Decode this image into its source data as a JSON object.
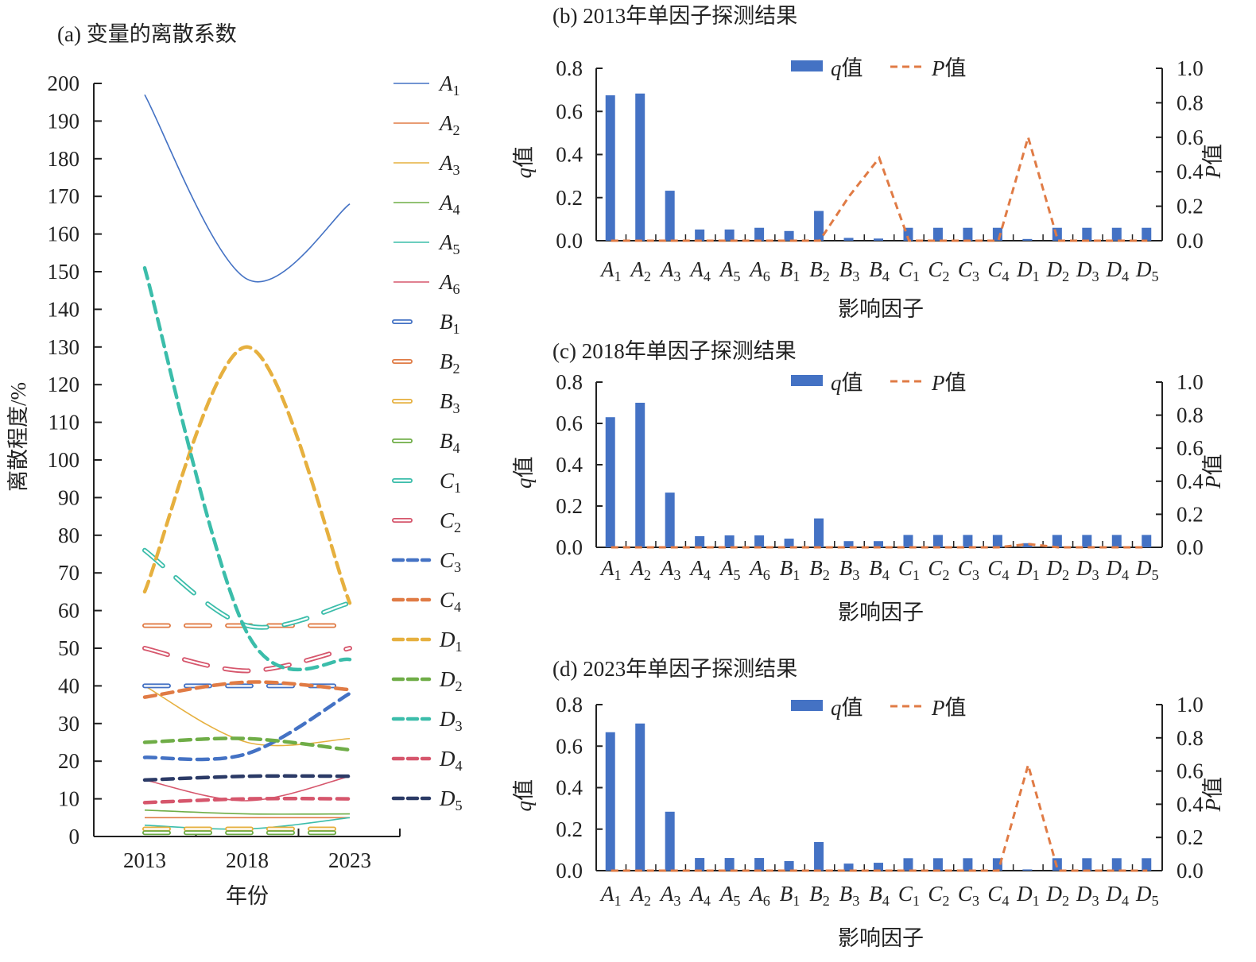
{
  "colors": {
    "blue": "#4472c4",
    "orange": "#e07b45",
    "yellow": "#e6b03f",
    "green": "#6fad47",
    "teal": "#3bbdaa",
    "red": "#d6566c",
    "navy": "#2b3a66",
    "axis": "#222222"
  },
  "chart_data": [
    {
      "type": "line",
      "title": "(a) 变量的离散系数",
      "xlabel": "年份",
      "ylabel": "离散程度/%",
      "x": [
        2013,
        2018,
        2023
      ],
      "x_tick_labels": [
        "2013",
        "2018",
        "2023"
      ],
      "ylim": [
        0,
        200
      ],
      "y_ticks": [
        0,
        10,
        20,
        30,
        40,
        50,
        60,
        70,
        80,
        90,
        100,
        110,
        120,
        130,
        140,
        150,
        160,
        170,
        180,
        190,
        200
      ],
      "legend_position": "right",
      "series": [
        {
          "name": "A1",
          "style": "solid",
          "color": "blue",
          "values": [
            197,
            148,
            168
          ]
        },
        {
          "name": "A2",
          "style": "solid",
          "color": "orange",
          "values": [
            5,
            5,
            5
          ]
        },
        {
          "name": "A3",
          "style": "solid",
          "color": "yellow",
          "values": [
            40,
            25,
            26
          ]
        },
        {
          "name": "A4",
          "style": "solid",
          "color": "green",
          "values": [
            7,
            6,
            6
          ]
        },
        {
          "name": "A5",
          "style": "solid",
          "color": "teal",
          "values": [
            3,
            2,
            5
          ]
        },
        {
          "name": "A6",
          "style": "solid",
          "color": "red",
          "values": [
            15,
            9.5,
            16
          ]
        },
        {
          "name": "B1",
          "style": "hollow",
          "color": "blue",
          "values": [
            40,
            40,
            40
          ]
        },
        {
          "name": "B2",
          "style": "hollow",
          "color": "orange",
          "values": [
            56,
            56,
            56
          ]
        },
        {
          "name": "B3",
          "style": "hollow",
          "color": "yellow",
          "values": [
            2,
            2,
            2
          ]
        },
        {
          "name": "B4",
          "style": "hollow",
          "color": "green",
          "values": [
            1,
            1,
            1
          ]
        },
        {
          "name": "C1",
          "style": "hollow",
          "color": "teal",
          "values": [
            76,
            56,
            62
          ]
        },
        {
          "name": "C2",
          "style": "hollow",
          "color": "red",
          "values": [
            50,
            44,
            50
          ]
        },
        {
          "name": "C3",
          "style": "dashed",
          "color": "blue",
          "values": [
            21,
            22,
            38
          ]
        },
        {
          "name": "C4",
          "style": "dashed",
          "color": "orange",
          "values": [
            37,
            41,
            39
          ]
        },
        {
          "name": "D1",
          "style": "dashed",
          "color": "yellow",
          "values": [
            65,
            130,
            62
          ]
        },
        {
          "name": "D2",
          "style": "dashed",
          "color": "green",
          "values": [
            25,
            26,
            23
          ]
        },
        {
          "name": "D3",
          "style": "dashed",
          "color": "teal",
          "values": [
            151,
            54,
            47
          ]
        },
        {
          "name": "D4",
          "style": "dashed",
          "color": "red",
          "values": [
            9,
            10,
            10
          ]
        },
        {
          "name": "D5",
          "style": "dashed",
          "color": "navy",
          "values": [
            15,
            16,
            16
          ]
        }
      ]
    },
    {
      "type": "bar",
      "title": "(b) 2013年单因子探测结果",
      "xlabel": "影响因子",
      "ylabel": "q值",
      "y2label": "P值",
      "categories": [
        "A1",
        "A2",
        "A3",
        "A4",
        "A5",
        "A6",
        "B1",
        "B2",
        "B3",
        "B4",
        "C1",
        "C2",
        "C3",
        "C4",
        "D1",
        "D2",
        "D3",
        "D4",
        "D5"
      ],
      "ylim": [
        0,
        0.8
      ],
      "y_ticks": [
        "0.0",
        "0.2",
        "0.4",
        "0.6",
        "0.8"
      ],
      "y2lim": [
        0,
        1.0
      ],
      "y2_ticks": [
        "0.0",
        "0.2",
        "0.4",
        "0.6",
        "0.8",
        "1.0"
      ],
      "legend": [
        "q值",
        "P值"
      ],
      "legend_position": "top",
      "series": [
        {
          "name": "q值",
          "type": "bar",
          "values": [
            0.675,
            0.683,
            0.232,
            0.052,
            0.052,
            0.06,
            0.045,
            0.138,
            0.013,
            0.01,
            0.06,
            0.06,
            0.06,
            0.06,
            0.008,
            0.06,
            0.06,
            0.06,
            0.06
          ]
        },
        {
          "name": "P值",
          "type": "line",
          "axis": "right",
          "values": [
            0,
            0,
            0,
            0,
            0,
            0,
            0,
            0,
            0.26,
            0.48,
            0,
            0,
            0,
            0,
            0.6,
            0,
            0,
            0,
            0
          ]
        }
      ]
    },
    {
      "type": "bar",
      "title": "(c) 2018年单因子探测结果",
      "xlabel": "影响因子",
      "ylabel": "q值",
      "y2label": "P值",
      "categories": [
        "A1",
        "A2",
        "A3",
        "A4",
        "A5",
        "A6",
        "B1",
        "B2",
        "B3",
        "B4",
        "C1",
        "C2",
        "C3",
        "C4",
        "D1",
        "D2",
        "D3",
        "D4",
        "D5"
      ],
      "ylim": [
        0,
        0.8
      ],
      "y_ticks": [
        "0.0",
        "0.2",
        "0.4",
        "0.6",
        "0.8"
      ],
      "y2lim": [
        0,
        1.0
      ],
      "y2_ticks": [
        "0.0",
        "0.2",
        "0.4",
        "0.6",
        "0.8",
        "1.0"
      ],
      "legend": [
        "q值",
        "P值"
      ],
      "legend_position": "top",
      "series": [
        {
          "name": "q值",
          "type": "bar",
          "values": [
            0.63,
            0.7,
            0.265,
            0.054,
            0.058,
            0.058,
            0.042,
            0.14,
            0.03,
            0.03,
            0.06,
            0.06,
            0.06,
            0.06,
            0.02,
            0.06,
            0.06,
            0.06,
            0.06
          ]
        },
        {
          "name": "P值",
          "type": "line",
          "axis": "right",
          "values": [
            0,
            0,
            0,
            0,
            0,
            0,
            0,
            0,
            0,
            0,
            0,
            0,
            0,
            0,
            0.02,
            0,
            0,
            0,
            0
          ]
        }
      ]
    },
    {
      "type": "bar",
      "title": "(d) 2023年单因子探测结果",
      "xlabel": "影响因子",
      "ylabel": "q值",
      "y2label": "P值",
      "categories": [
        "A1",
        "A2",
        "A3",
        "A4",
        "A5",
        "A6",
        "B1",
        "B2",
        "B3",
        "B4",
        "C1",
        "C2",
        "C3",
        "C4",
        "D1",
        "D2",
        "D3",
        "D4",
        "D5"
      ],
      "ylim": [
        0,
        0.8
      ],
      "y_ticks": [
        "0.0",
        "0.2",
        "0.4",
        "0.6",
        "0.8"
      ],
      "y2lim": [
        0,
        1.0
      ],
      "y2_ticks": [
        "0.0",
        "0.2",
        "0.4",
        "0.6",
        "0.8",
        "1.0"
      ],
      "legend": [
        "q值",
        "P值"
      ],
      "legend_position": "top",
      "series": [
        {
          "name": "q值",
          "type": "bar",
          "values": [
            0.667,
            0.709,
            0.284,
            0.061,
            0.061,
            0.061,
            0.046,
            0.138,
            0.034,
            0.038,
            0.06,
            0.06,
            0.06,
            0.06,
            0.006,
            0.06,
            0.06,
            0.06,
            0.06
          ]
        },
        {
          "name": "P值",
          "type": "line",
          "axis": "right",
          "values": [
            0,
            0,
            0,
            0,
            0,
            0,
            0,
            0,
            0,
            0,
            0,
            0,
            0,
            0,
            0.636,
            0,
            0,
            0,
            0
          ]
        }
      ]
    }
  ]
}
